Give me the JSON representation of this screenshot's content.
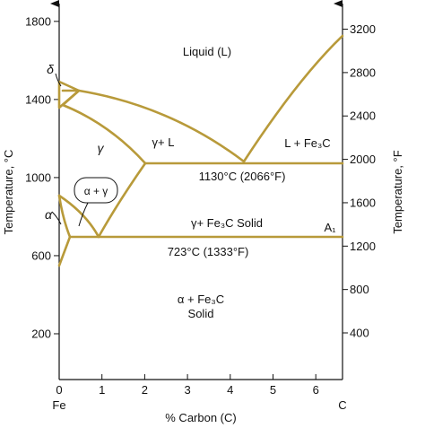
{
  "diagram": {
    "left_axis": {
      "title": "Temperature, °C",
      "ticks": [
        {
          "value": 200,
          "label": "200"
        },
        {
          "value": 600,
          "label": "600"
        },
        {
          "value": 1000,
          "label": "1000"
        },
        {
          "value": 1400,
          "label": "1400"
        },
        {
          "value": 1800,
          "label": "1800"
        }
      ]
    },
    "right_axis": {
      "title": "Temperature, °F",
      "ticks": [
        {
          "value": 400,
          "label": "400"
        },
        {
          "value": 800,
          "label": "800"
        },
        {
          "value": 1200,
          "label": "1200"
        },
        {
          "value": 1600,
          "label": "1600"
        },
        {
          "value": 2000,
          "label": "2000"
        },
        {
          "value": 2400,
          "label": "2400"
        },
        {
          "value": 2800,
          "label": "2800"
        },
        {
          "value": 3200,
          "label": "3200"
        }
      ]
    },
    "bottom_axis": {
      "title": "% Carbon (C)",
      "ticks": [
        {
          "value": 0,
          "label": "0"
        },
        {
          "value": 1,
          "label": "1"
        },
        {
          "value": 2,
          "label": "2"
        },
        {
          "value": 3,
          "label": "3"
        },
        {
          "value": 4,
          "label": "4"
        },
        {
          "value": 5,
          "label": "5"
        },
        {
          "value": 6,
          "label": "6"
        }
      ],
      "end_left": "Fe",
      "end_right": "C"
    },
    "regions": {
      "liquid": "Liquid (L)",
      "delta": "δ",
      "gamma": "γ",
      "gamma_plus_l": "γ+ L",
      "l_plus_fe3c": "L + Fe₃C",
      "eutectic": "1130°C (2066°F)",
      "alpha_plus_gamma": "α + γ",
      "alpha": "α",
      "gamma_plus_fe3c": "γ+ Fe₃C  Solid",
      "a1": "A₁",
      "eutectoid": "723°C (1333°F)",
      "alpha_plus_fe3c": "α + Fe₃C",
      "alpha_plus_fe3c_solid": "Solid"
    },
    "line_color": "#b89a3a"
  }
}
